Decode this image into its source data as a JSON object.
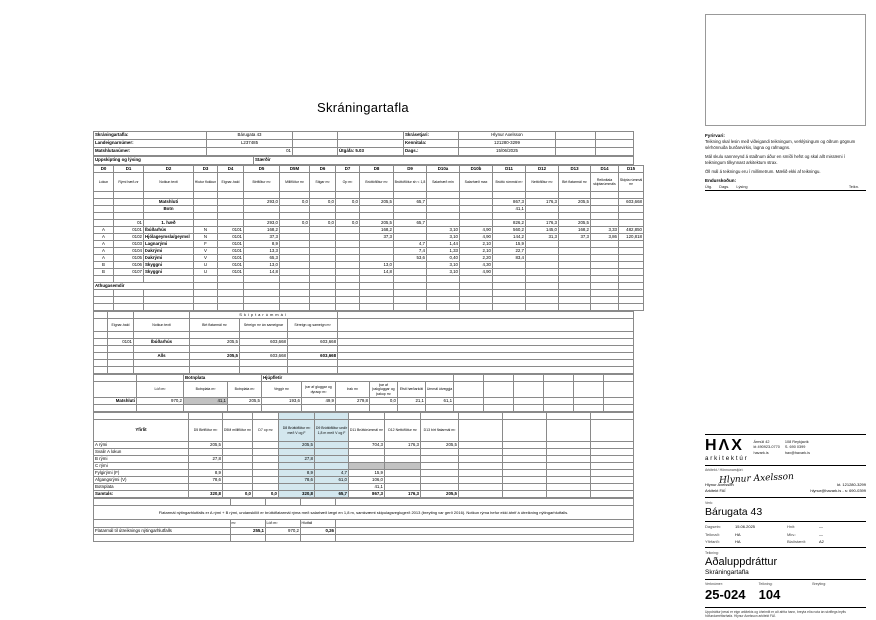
{
  "page_title": "Skráningartafla",
  "colors": {
    "highlight_blue": "#d3e7ee",
    "highlight_gray": "#c2c2c2"
  },
  "header": {
    "skraningartafla_label": "Skráningartafla:",
    "skraningartafla_value": "Bárugata 43",
    "landeign_label": "Landeignarnúmer:",
    "landeign_value": "L237485",
    "matshluti_label": "Matshlutanúmer:",
    "matshluti_value": "01",
    "utgafa": "Útgáfa: 5.03",
    "skrasetjari_label": "Skrásetjari:",
    "skrasetjari_value": "Hlynur Axelsson",
    "kennitala_label": "Kennitala:",
    "kennitala_value": "121280-3299",
    "dags_label": "Dags.:",
    "dags_value": "15/06/2025",
    "section_left": "Uppskipting og lýsing",
    "section_right": "Stærðir"
  },
  "columns": {
    "codes": [
      "D0",
      "D1",
      "D2",
      "D3",
      "D4",
      "D5",
      "D5M",
      "D6",
      "D7",
      "D8",
      "D9",
      "D10a",
      "D10b",
      "D11",
      "D12",
      "D13",
      "D14",
      "D15"
    ],
    "descs": [
      "Lokun",
      "Rými hæð-nr",
      "Notkun texti",
      "Hlutur flokkun",
      "Eignar-hald",
      "Birtflötur m²",
      "Milliflötur m²",
      "Stigar m²",
      "Op m²",
      "Brúttóflötur m²",
      "Brúttóflötur sh < 1,8",
      "Salarhæð min",
      "Salarhæð max",
      "Brúttó rúmmál m³",
      "Nettóflötur m²",
      "Birt flatarmál m²",
      "Reiknitala skiptarúmmáls",
      "Skipta rúmmál m³"
    ]
  },
  "main_rows": [
    [
      "",
      "",
      "Matshluti",
      "",
      "",
      "293,0",
      "0,0",
      "0,0",
      "0,0",
      "205,5",
      "65,7",
      "",
      "",
      "867,3",
      "176,3",
      "205,5",
      "",
      "603,668"
    ],
    [
      "",
      "",
      "Botn",
      "",
      "",
      "",
      "",
      "",
      "",
      "",
      "",
      "",
      "",
      "41,1",
      "",
      "",
      "",
      ""
    ],
    [
      "",
      "01",
      "1. hæð",
      "",
      "",
      "293,0",
      "0,0",
      "0,0",
      "0,0",
      "205,5",
      "65,7",
      "",
      "",
      "826,2",
      "176,3",
      "205,5",
      "",
      ""
    ],
    [
      "A",
      "0101",
      "Íbúðarhús",
      "N",
      "0101",
      "168,2",
      "",
      "",
      "",
      "168,2",
      "",
      "3,10",
      "4,90",
      "560,2",
      "145,0",
      "168,2",
      "3,33",
      "482,850"
    ],
    [
      "A",
      "0102",
      "Hjólageymsla/geymsl",
      "N",
      "0101",
      "37,3",
      "",
      "",
      "",
      "37,3",
      "",
      "3,10",
      "4,90",
      "144,2",
      "31,3",
      "37,3",
      "3,86",
      "120,818"
    ],
    [
      "A",
      "0103",
      "Lagnarými",
      "F",
      "0101",
      "8,9",
      "",
      "",
      "",
      "",
      "4,7",
      "1,44",
      "2,10",
      "15,9",
      "",
      "",
      "",
      ""
    ],
    [
      "A",
      "0104",
      "Þakrými",
      "V",
      "0101",
      "13,3",
      "",
      "",
      "",
      "",
      "7,4",
      "1,33",
      "2,10",
      "22,7",
      "",
      "",
      "",
      ""
    ],
    [
      "A",
      "0105",
      "Þakrými",
      "V",
      "0101",
      "65,3",
      "",
      "",
      "",
      "",
      "53,6",
      "0,40",
      "2,20",
      "83,4",
      "",
      "",
      "",
      ""
    ],
    [
      "B",
      "0106",
      "Skyggni",
      "U",
      "0101",
      "13,0",
      "",
      "",
      "",
      "13,0",
      "",
      "3,10",
      "4,30",
      "",
      "",
      "",
      "",
      ""
    ],
    [
      "B",
      "0107",
      "Skyggni",
      "U",
      "0101",
      "14,8",
      "",
      "",
      "",
      "14,8",
      "",
      "3,10",
      "4,90",
      "",
      "",
      "",
      "",
      ""
    ]
  ],
  "athugasemdir": "Athugasemdir",
  "skiptarummal": {
    "title": "Skiptarúmmál",
    "headers": [
      "Eignar-hald",
      "Notkun texti",
      "Birt flatarmál m²",
      "Séreign m³ án sameignar",
      "Séreign og sameign m³"
    ],
    "row": [
      "0101",
      "Íbúðarhús",
      "205,5",
      "603,668",
      "603,668"
    ],
    "alls_label": "Alls",
    "alls": [
      "205,5",
      "603,668",
      "603,668"
    ]
  },
  "botnplata": {
    "title_left": "Botnplata",
    "title_right": "Hjúpfletir",
    "headers": [
      "Lóð m²",
      "Botnplata m³",
      "Botnplata m²",
      "Veggir m²",
      "þar af gluggar og dyraop m²",
      "Þak m²",
      "þar af þakgluggar og þakop m²",
      "Efsti hæðarkóti",
      "Ummál útveggja"
    ],
    "row_label": "Matshluti",
    "values": [
      "970,2",
      "41,1",
      "205,5",
      "193,6",
      "49,9",
      "279,8",
      "0,0",
      "21,1",
      "61,1"
    ]
  },
  "yfirlit": {
    "title": "Yfirlit",
    "headers": [
      "D5 Birtflötur m²",
      "D5M milliflötur m²",
      "D7 op m²",
      "D8 Brúttóflötur m² með V og F",
      "D9 Brúttóflötur undir 1,8 m með V og F",
      "D11 Brúttórúmmál m³",
      "D12 Nettóflötur m²",
      "D13 birt flatarmál m²"
    ],
    "rows": [
      [
        "A rými",
        "205,5",
        "",
        "",
        "205,5",
        "",
        "704,3",
        "176,3",
        "205,5"
      ],
      [
        "Svalir A lokun",
        "",
        "",
        "",
        "",
        "",
        "",
        "",
        ""
      ],
      [
        "B rými",
        "27,8",
        "",
        "",
        "27,8",
        "",
        "",
        "",
        ""
      ],
      [
        "C rými",
        "",
        "",
        "",
        "",
        "",
        "",
        "",
        ""
      ],
      [
        "Fylgirými (F)",
        "8,9",
        "",
        "",
        "8,9",
        "4,7",
        "15,9",
        "",
        ""
      ],
      [
        "Afgangsrými (V)",
        "78,6",
        "",
        "",
        "78,6",
        "61,0",
        "106,0",
        "",
        ""
      ],
      [
        "Botnplata",
        "",
        "",
        "",
        "",
        "",
        "41,1",
        "",
        ""
      ],
      [
        "Samtals:",
        "320,8",
        "0,0",
        "0,0",
        "320,8",
        "65,7",
        "867,3",
        "176,3",
        "205,5"
      ]
    ]
  },
  "nyting": {
    "note": "Flatarmál nýtingarhlutfalls er A rými + B rými, undanskilið er brúttóflatarmál rýma með salarhæð lægri en 1,8 m, samkvæmt skipulagsreglugerð 2013 (breyting var gerð 2016). Notkun rýma hefur ekki áhrif á útreikning nýtingarhlutfalls.",
    "headers": [
      "m²",
      "Lóð m²",
      "Hlutfall"
    ],
    "row_label": "Flatarmál til útreiknings nýtingarhlutfalls",
    "values": [
      "255,1",
      "970,2",
      "0,26"
    ]
  },
  "panel": {
    "fyrirvari_title": "Fyrirvari:",
    "fyrirvari": [
      "Teikning skal lesin með viðeigandi teikningum, verklýsingum og öðrum gögnum sérhönnuða burðarvirkis, lagna og rafmagns.",
      "Mál skulu sannreynd á staðnum áður en smíði hefst og skal allt misræmi í teikningum tilkynnast arkitektum strax.",
      "Öll mál á teikningu eru í millimetrum. Mælið ekki af teikningu."
    ],
    "endurskodun_title": "Endurskoðun:",
    "endurskodun_cols": [
      "Útg.",
      "Dags.",
      "Lýsing",
      "Teikn."
    ],
    "firm": {
      "logo": "HΛX",
      "logo_sub": "arkitektúr",
      "address": [
        "Ármúli 42",
        "kt 490923-0770",
        "havark.is"
      ],
      "address2": [
        "108 Reykjavík",
        "S. 690 0399",
        "hax@havark.is"
      ]
    },
    "architect": {
      "label": "Arkitekt / Hönnunarstjóri:",
      "signature": "Hlynur Axelsson",
      "name": "Hlynur Axelsson",
      "title": "Arkitekt FAÍ",
      "kt": "kt. 121280-3299",
      "contact": "hlynur@havark.is - s: 690-0399"
    },
    "verk": {
      "label": "Verk:",
      "value": "Bárugata 43"
    },
    "meta": [
      {
        "l1": "Dagsetn:",
        "v1": "15.06.2025",
        "l2": "Hnit:",
        "v2": "—"
      },
      {
        "l1": "Teiknað:",
        "v1": "HA",
        "l2": "Mkv.:",
        "v2": "—"
      },
      {
        "l1": "Yfirfarið:",
        "v1": "HA",
        "l2": "Blaðstærð:",
        "v2": "A2"
      }
    ],
    "teikning": {
      "label": "Teikning:",
      "main": "Aðaluppdráttur",
      "sub": "Skráningartafla"
    },
    "numbers": {
      "verknr_label": "Verknúmer:",
      "verknr": "25-024",
      "teikn_label": "Teikning:",
      "teikn": "104",
      "breyting_label": "Breyting:"
    },
    "fineprint": "Uppdráttur þessi er eign arkitekts og óheimilt er að afrita hann, breyta eða nota án skriflegs leyfis höfundarréttarhafa. Hlynur Axelsson arkitekt FAÍ."
  }
}
